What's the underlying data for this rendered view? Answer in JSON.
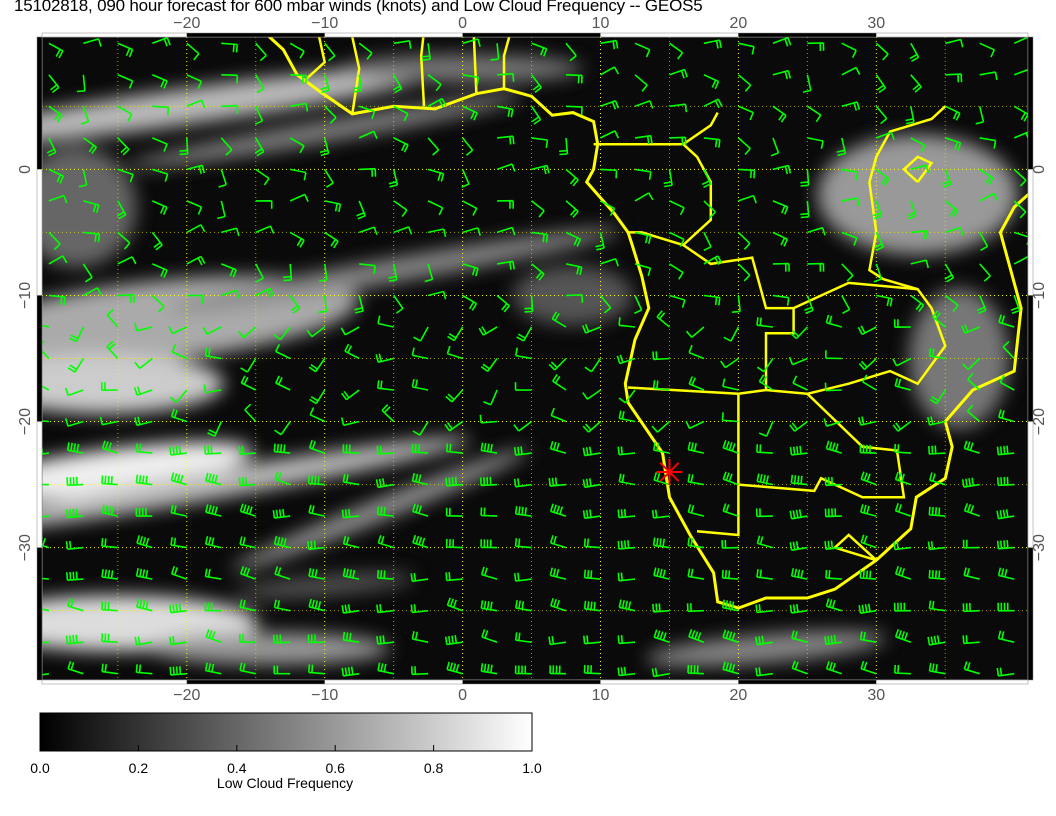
{
  "title": "15102818, 090 hour forecast for 600 mbar winds (knots) and Low Cloud Frequency -- GEOS5",
  "chart_data": {
    "type": "map",
    "field": "Low Cloud Frequency",
    "overlay": "600 mbar wind barbs (knots)",
    "lon_range": [
      -30.5,
      41
    ],
    "lat_range": [
      -40.5,
      10.5
    ],
    "lon_ticks": [
      -20,
      -10,
      0,
      10,
      20,
      30
    ],
    "lat_ticks": [
      0,
      -10,
      -20,
      -30
    ],
    "lon_tick_labels": [
      "−20",
      "−10",
      "0",
      "10",
      "20",
      "30"
    ],
    "lat_tick_labels": [
      "0",
      "−10",
      "−20",
      "−30"
    ],
    "grid": true,
    "marker": {
      "lon": 15,
      "lat": -24,
      "symbol": "asterisk",
      "color": "#ff0000"
    },
    "colors": {
      "coastline": "#ffff00",
      "barbs": "#00ff00",
      "grid": "#ffff00"
    },
    "colorbar": {
      "label": "Low Cloud Frequency",
      "range": [
        0,
        1
      ],
      "tick_labels": [
        "0.0",
        "0.2",
        "0.4",
        "0.6",
        "0.8",
        "1.0"
      ],
      "colormap": "grayscale black-to-white"
    }
  }
}
